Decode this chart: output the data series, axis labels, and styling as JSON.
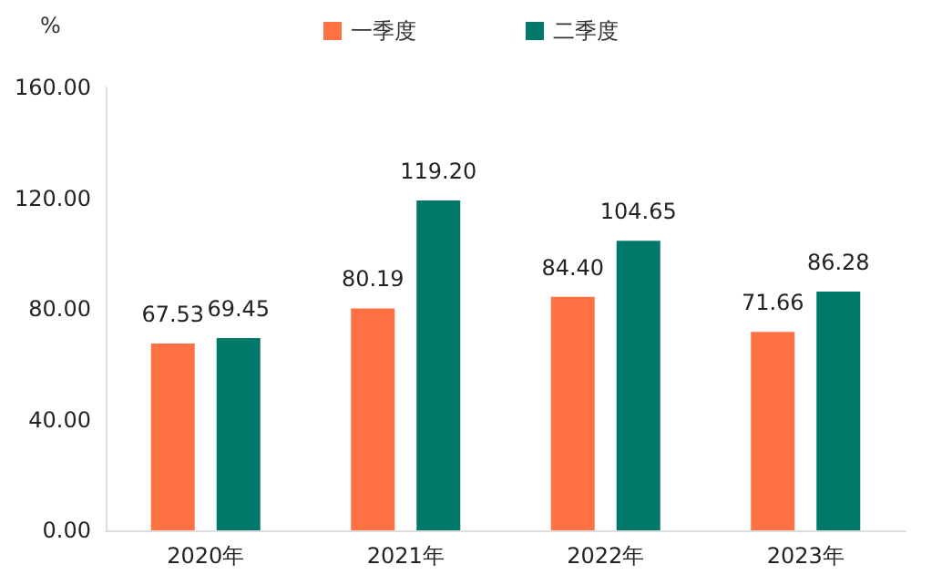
{
  "chart_data": {
    "type": "bar",
    "ylabel": "%",
    "categories": [
      "2020年",
      "2021年",
      "2022年",
      "2023年"
    ],
    "series": [
      {
        "name": "一季度",
        "color": "#ff7043",
        "values": [
          67.53,
          80.19,
          84.4,
          71.66
        ],
        "value_labels": [
          "67.53",
          "80.19",
          "84.40",
          "71.66"
        ]
      },
      {
        "name": "二季度",
        "color": "#00796b",
        "values": [
          69.45,
          119.2,
          104.65,
          86.28
        ],
        "value_labels": [
          "69.45",
          "119.20",
          "104.65",
          "86.28"
        ]
      }
    ],
    "ylim": [
      0,
      160
    ],
    "yticks": [
      {
        "value": 0,
        "label": "0.00"
      },
      {
        "value": 40,
        "label": "40.00"
      },
      {
        "value": 80,
        "label": "80.00"
      },
      {
        "value": 120,
        "label": "120.00"
      },
      {
        "value": 160,
        "label": "160.00"
      }
    ],
    "grid": false,
    "legend": "top"
  }
}
